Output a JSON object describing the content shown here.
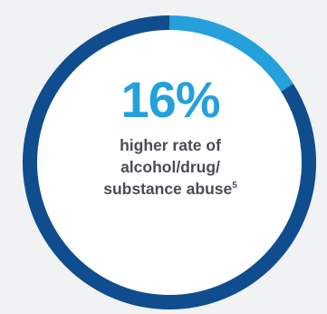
{
  "chart_data": {
    "type": "pie",
    "values": [
      16,
      84
    ],
    "center_value": "16%",
    "caption_lines": [
      "higher rate of",
      "alcohol/drug/",
      "substance abuse"
    ],
    "footnote_marker": "5"
  },
  "colors": {
    "highlight": "#24a0dc",
    "remainder": "#0f4d8e",
    "percent_text": "#24a0dc",
    "caption_text": "#4a4c55",
    "background": "#f1f2f4",
    "inner_fill": "#ffffff"
  }
}
